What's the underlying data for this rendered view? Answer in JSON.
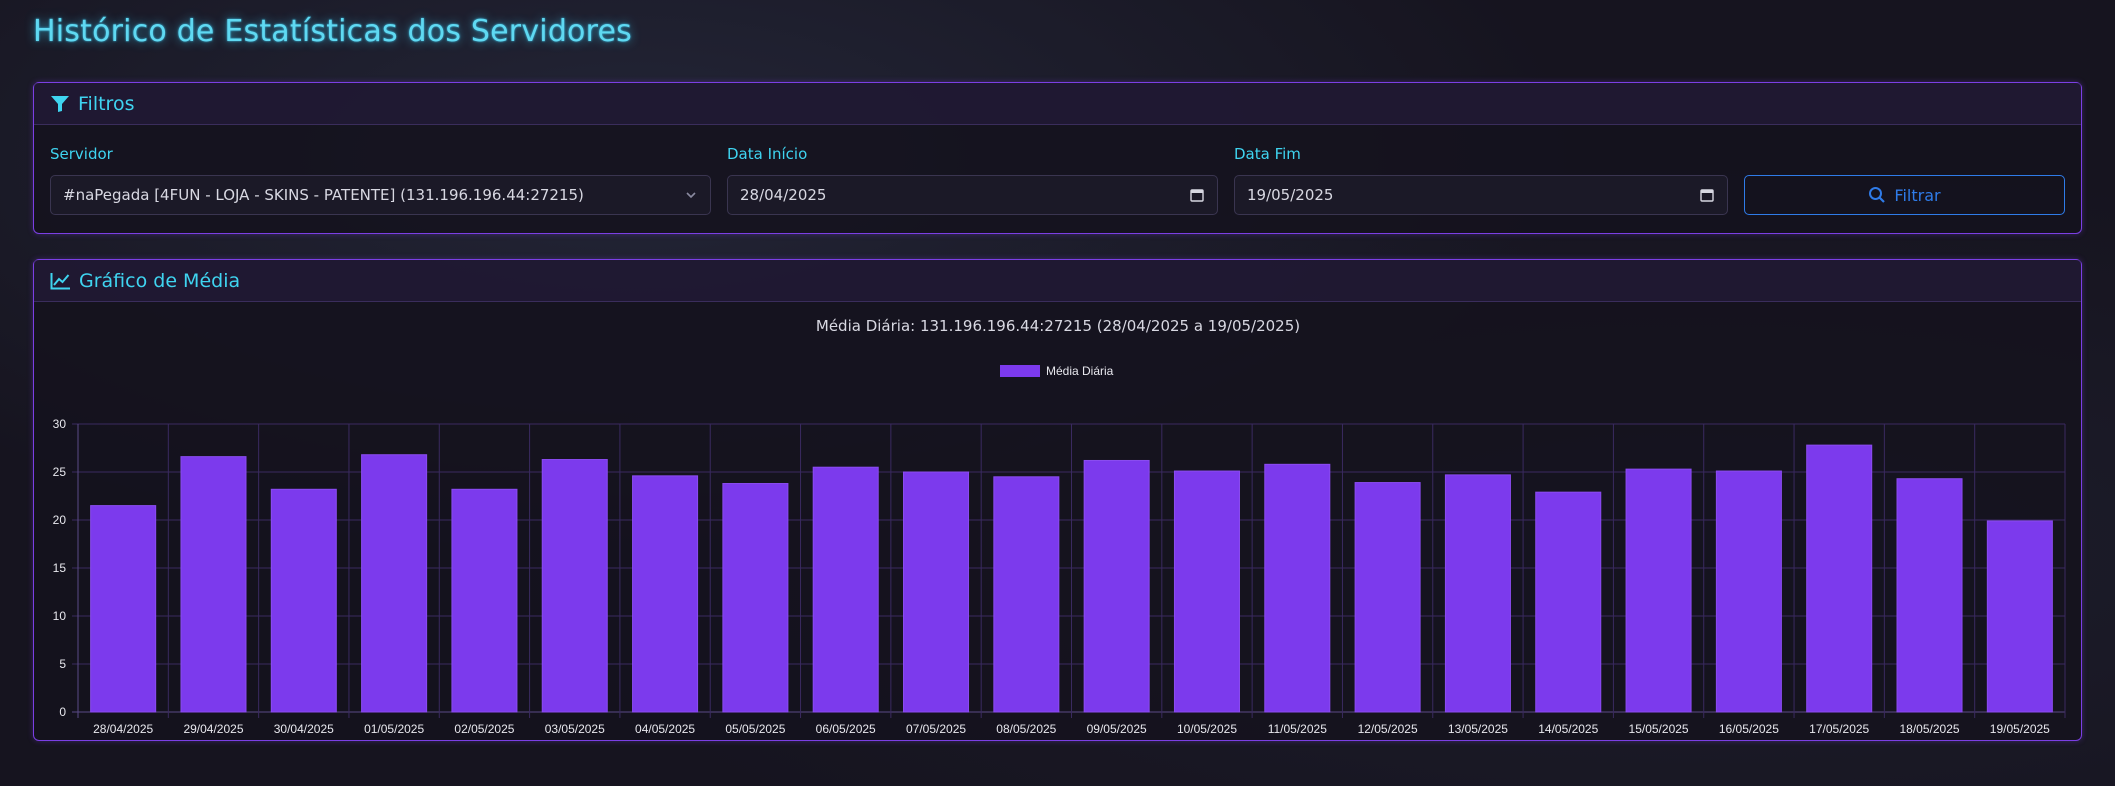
{
  "page": {
    "title": "Histórico de Estatísticas dos Servidores"
  },
  "filters": {
    "header": "Filtros",
    "server_label": "Servidor",
    "server_value": "#naPegada [4FUN - LOJA - SKINS - PATENTE] (131.196.196.44:27215)",
    "start_label": "Data Início",
    "start_value": "28/04/2025",
    "end_label": "Data Fim",
    "end_value": "19/05/2025",
    "button_label": "Filtrar"
  },
  "chart_section": {
    "header": "Gráfico de Média"
  },
  "colors": {
    "accent": "#3fd4f0",
    "bar": "#7c3aed",
    "border": "#7b3fe4",
    "button": "#2f7be8"
  },
  "chart_data": {
    "type": "bar",
    "title": "Média Diária: 131.196.196.44:27215 (28/04/2025 a 19/05/2025)",
    "legend_position": "top",
    "grid": true,
    "ylim": [
      0,
      30
    ],
    "yticks": [
      0,
      5,
      10,
      15,
      20,
      25,
      30
    ],
    "categories": [
      "28/04/2025",
      "29/04/2025",
      "30/04/2025",
      "01/05/2025",
      "02/05/2025",
      "03/05/2025",
      "04/05/2025",
      "05/05/2025",
      "06/05/2025",
      "07/05/2025",
      "08/05/2025",
      "09/05/2025",
      "10/05/2025",
      "11/05/2025",
      "12/05/2025",
      "13/05/2025",
      "14/05/2025",
      "15/05/2025",
      "16/05/2025",
      "17/05/2025",
      "18/05/2025",
      "19/05/2025"
    ],
    "series": [
      {
        "name": "Média Diária",
        "values": [
          21.5,
          26.6,
          23.2,
          26.8,
          23.2,
          26.3,
          24.6,
          23.8,
          25.5,
          25.0,
          24.5,
          26.2,
          25.1,
          25.8,
          23.9,
          24.7,
          22.9,
          25.3,
          25.1,
          27.8,
          24.3,
          19.9
        ]
      }
    ]
  }
}
